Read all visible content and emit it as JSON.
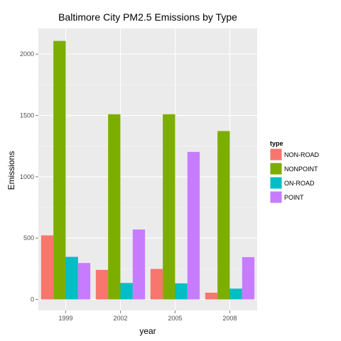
{
  "chart_data": {
    "type": "bar",
    "title": "Baltimore City PM2.5 Emissions by Type",
    "xlabel": "year",
    "ylabel": "Emissions",
    "categories": [
      "1999",
      "2002",
      "2005",
      "2008"
    ],
    "ylim": [
      -90,
      2210
    ],
    "yticks": [
      0,
      500,
      1000,
      1500,
      2000
    ],
    "grid": true,
    "legend": {
      "title": "type",
      "placement": "right"
    },
    "series": [
      {
        "name": "NON-ROAD",
        "color": "#F8766D",
        "values": [
          522,
          241,
          249,
          55
        ]
      },
      {
        "name": "NONPOINT",
        "color": "#7CAE00",
        "values": [
          2108,
          1510,
          1510,
          1373
        ]
      },
      {
        "name": "ON-ROAD",
        "color": "#00BFC4",
        "values": [
          347,
          134,
          131,
          88
        ]
      },
      {
        "name": "POINT",
        "color": "#C77CFF",
        "values": [
          297,
          570,
          1203,
          345
        ]
      }
    ]
  }
}
